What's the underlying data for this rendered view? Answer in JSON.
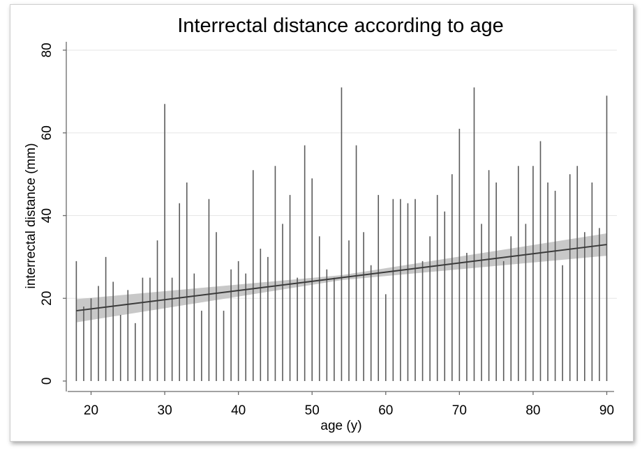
{
  "chart_data": {
    "type": "bar",
    "title": "Interrectal distance according to age",
    "xlabel": "age (y)",
    "ylabel": "interrectal distance (mm)",
    "xlim": [
      17,
      91
    ],
    "ylim": [
      0,
      80
    ],
    "x_ticks": [
      20,
      30,
      40,
      50,
      60,
      70,
      80,
      90
    ],
    "y_ticks": [
      0,
      20,
      40,
      60,
      80
    ],
    "grid": true,
    "series": [
      {
        "style": "spikes",
        "x": [
          18,
          19,
          20,
          21,
          22,
          23,
          24,
          25,
          26,
          27,
          28,
          29,
          30,
          31,
          32,
          33,
          34,
          35,
          36,
          37,
          38,
          39,
          40,
          41,
          42,
          43,
          44,
          45,
          46,
          47,
          48,
          49,
          50,
          51,
          52,
          53,
          54,
          55,
          56,
          57,
          58,
          59,
          60,
          61,
          62,
          63,
          64,
          65,
          66,
          67,
          68,
          69,
          70,
          71,
          72,
          73,
          74,
          75,
          76,
          77,
          78,
          79,
          80,
          81,
          82,
          83,
          84,
          85,
          86,
          87,
          88,
          89,
          90
        ],
        "y": [
          29,
          18,
          20,
          23,
          30,
          24,
          16,
          22,
          14,
          25,
          25,
          34,
          67,
          25,
          43,
          48,
          26,
          17,
          44,
          36,
          17,
          27,
          29,
          26,
          51,
          32,
          30,
          52,
          38,
          45,
          25,
          57,
          49,
          35,
          27,
          25,
          71,
          34,
          57,
          36,
          28,
          45,
          21,
          44,
          44,
          43,
          44,
          29,
          35,
          45,
          41,
          50,
          61,
          31,
          71,
          38,
          51,
          48,
          29,
          35,
          52,
          38,
          52,
          58,
          48,
          46,
          28,
          50,
          52,
          36,
          48,
          37,
          69
        ]
      },
      {
        "style": "fitted-line",
        "x": [
          18,
          90
        ],
        "y": [
          17,
          33
        ]
      },
      {
        "style": "confidence-band",
        "x": [
          18,
          54,
          90
        ],
        "lower": [
          14.2,
          24.4,
          30.3
        ],
        "upper": [
          19.8,
          25.6,
          35.7
        ]
      }
    ],
    "colors": {
      "spikes": "#5a5a5a",
      "fitted_line": "#3a3a3a",
      "band": "#c8c8c8",
      "grid": "#e6e6e6",
      "axis": "#6a6a6a"
    }
  }
}
